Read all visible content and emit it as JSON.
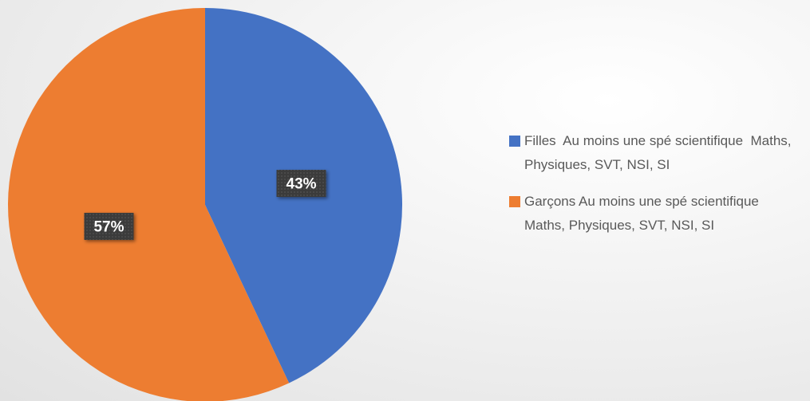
{
  "chart_data": {
    "type": "pie",
    "categories": [
      "Filles  Au moins une spé scientifique  Maths, Physiques, SVT, NSI, SI",
      "Garçons Au moins une spé scientifique  Maths, Physiques, SVT, NSI, SI"
    ],
    "values": [
      43,
      57
    ],
    "value_labels": [
      "43%",
      "57%"
    ],
    "colors": [
      "#4472c4",
      "#ed7d31"
    ],
    "legend": "right"
  }
}
